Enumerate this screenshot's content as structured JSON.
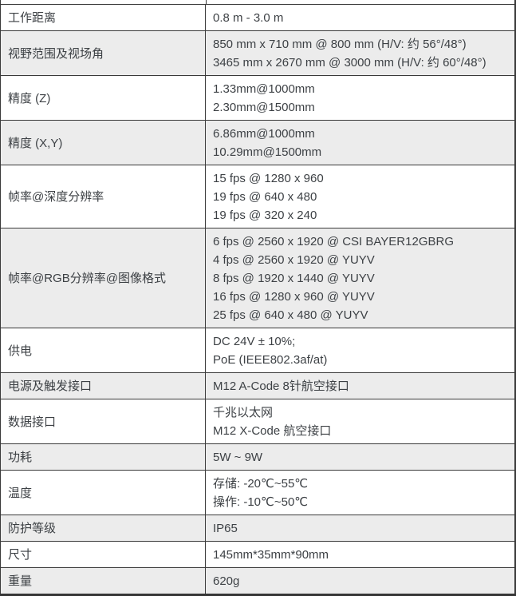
{
  "colors": {
    "row_stripe": "#ececec",
    "border": "#3a3a3a",
    "text": "#3d4145",
    "bottom_bar": "#363636"
  },
  "table": {
    "rows": [
      {
        "label": "工作距离",
        "values": [
          "0.8 m - 3.0 m"
        ]
      },
      {
        "label": "视野范围及视场角",
        "values": [
          "850 mm x 710 mm @ 800 mm (H/V: 约 56°/48°)",
          "3465 mm x 2670 mm @ 3000 mm (H/V: 约 60°/48°)"
        ]
      },
      {
        "label": "精度 (Z)",
        "values": [
          "1.33mm@1000mm",
          "2.30mm@1500mm"
        ]
      },
      {
        "label": "精度 (X,Y)",
        "values": [
          "6.86mm@1000mm",
          "10.29mm@1500mm"
        ]
      },
      {
        "label": "帧率@深度分辨率",
        "values": [
          "15 fps @ 1280 x 960",
          "19 fps @ 640 x 480",
          "19 fps @ 320 x 240"
        ]
      },
      {
        "label": "帧率@RGB分辨率@图像格式",
        "values": [
          "6 fps @ 2560 x 1920 @ CSI BAYER12GBRG",
          "4 fps @ 2560 x 1920 @ YUYV",
          "8 fps @ 1920 x 1440 @ YUYV",
          "16 fps @ 1280 x 960 @ YUYV",
          "25 fps @ 640 x 480 @ YUYV"
        ]
      },
      {
        "label": "供电",
        "values": [
          "DC 24V ± 10%;",
          "PoE (IEEE802.3af/at)"
        ]
      },
      {
        "label": "电源及触发接口",
        "values": [
          "M12 A-Code 8针航空接口"
        ]
      },
      {
        "label": "数据接口",
        "values": [
          "千兆以太网",
          "M12 X-Code 航空接口"
        ]
      },
      {
        "label": "功耗",
        "values": [
          "5W ~ 9W"
        ]
      },
      {
        "label": "温度",
        "values": [
          "存储: -20℃~55℃",
          "操作: -10℃~50℃"
        ]
      },
      {
        "label": "防护等级",
        "values": [
          "IP65"
        ]
      },
      {
        "label": "尺寸",
        "values": [
          "145mm*35mm*90mm"
        ]
      },
      {
        "label": "重量",
        "values": [
          "620g"
        ]
      }
    ]
  }
}
